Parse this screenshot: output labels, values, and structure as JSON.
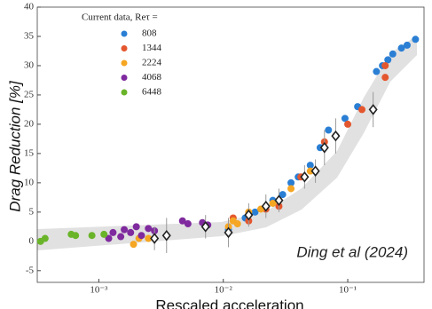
{
  "chart_data": {
    "type": "scatter",
    "ylabel": "Drag Reduction [%]",
    "xlabel": "Rescaled acceleration",
    "annotation": "Ding et al (2024)",
    "legend_title": "Current data, Reτ =",
    "legend_position": "upper left",
    "log_x": true,
    "grid": false,
    "xlim": [
      0.00032,
      0.41
    ],
    "ylim": [
      -7,
      40
    ],
    "xticks": [
      {
        "value": 0.001,
        "label": "10⁻³"
      },
      {
        "value": 0.01,
        "label": "10⁻²"
      },
      {
        "value": 0.1,
        "label": "10⁻¹"
      }
    ],
    "yticks": [
      -5,
      0,
      5,
      10,
      15,
      20,
      25,
      30,
      35,
      40
    ],
    "series": [
      {
        "name": "808",
        "color": "#2a7fd4",
        "x": [
          0.011,
          0.015,
          0.018,
          0.025,
          0.03,
          0.035,
          0.04,
          0.05,
          0.06,
          0.07,
          0.08,
          0.095,
          0.12,
          0.17,
          0.19,
          0.21,
          0.23,
          0.27,
          0.3,
          0.35
        ],
        "values": [
          2,
          4,
          5,
          7,
          8,
          10,
          11,
          13,
          16,
          19,
          18,
          21,
          23,
          29,
          30,
          31,
          32,
          33,
          33.5,
          34.5
        ]
      },
      {
        "name": "1344",
        "color": "#e4572e",
        "x": [
          0.012,
          0.016,
          0.022,
          0.028,
          0.042,
          0.055,
          0.065,
          0.08,
          0.1,
          0.13,
          0.2,
          0.2
        ],
        "values": [
          4,
          3.5,
          5.5,
          6,
          11,
          12,
          17,
          18,
          20,
          22.5,
          28,
          30
        ]
      },
      {
        "name": "2224",
        "color": "#f5a623",
        "x": [
          0.0019,
          0.0021,
          0.0025,
          0.011,
          0.012,
          0.013,
          0.016,
          0.02,
          0.025,
          0.028,
          0.035,
          0.045,
          0.05
        ],
        "values": [
          -0.5,
          0.5,
          0.5,
          2.5,
          3.5,
          3,
          5,
          5.5,
          6.5,
          7,
          9,
          11,
          12
        ]
      },
      {
        "name": "4068",
        "color": "#7f2a9e",
        "x": [
          0.0012,
          0.0013,
          0.0015,
          0.0016,
          0.0018,
          0.002,
          0.0022,
          0.0025,
          0.0028,
          0.0047,
          0.0052,
          0.0068,
          0.0075
        ],
        "values": [
          0.5,
          1.5,
          0.8,
          2,
          1.5,
          2.5,
          1,
          2.2,
          1.8,
          3.5,
          3,
          3.2,
          2.8
        ]
      },
      {
        "name": "6448",
        "color": "#6ab42a",
        "x": [
          0.00034,
          0.00037,
          0.0006,
          0.00065,
          0.00088,
          0.0011
        ],
        "values": [
          0,
          0.5,
          1.2,
          1,
          1,
          1.2
        ]
      },
      {
        "color": "#222222",
        "marker": "open-diamond",
        "x": [
          0.0028,
          0.0035,
          0.0072,
          0.011,
          0.016,
          0.022,
          0.028,
          0.045,
          0.055,
          0.065,
          0.08,
          0.16
        ],
        "values": [
          0.5,
          1,
          2.5,
          1.5,
          4.5,
          6,
          7,
          11,
          12,
          16,
          18,
          22.5
        ],
        "errors": [
          2,
          3,
          2,
          2.5,
          2,
          2,
          2,
          2,
          2,
          3,
          3,
          3
        ]
      }
    ]
  }
}
